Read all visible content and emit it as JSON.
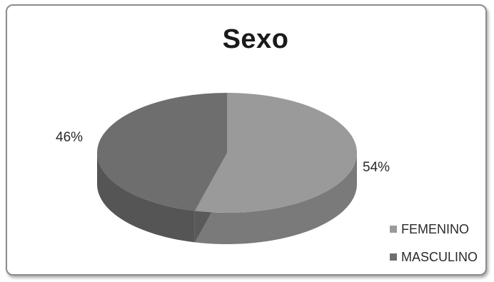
{
  "chart_data": {
    "type": "pie",
    "title": "Sexo",
    "slices": [
      {
        "name": "FEMENINO",
        "value": 54,
        "label": "54%",
        "color": "#9a9a9a",
        "side_color": "#7a7a7a"
      },
      {
        "name": "MASCULINO",
        "value": 46,
        "label": "46%",
        "color": "#6e6e6e",
        "side_color": "#555555"
      }
    ],
    "legend_position": "bottom-right",
    "style": "3d"
  }
}
